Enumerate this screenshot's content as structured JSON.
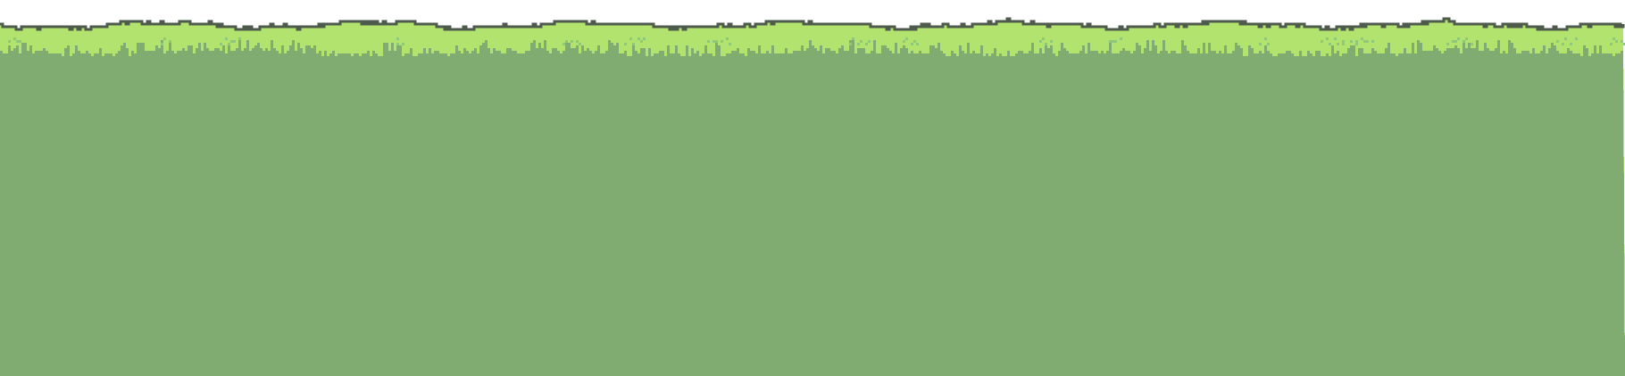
{
  "scene": {
    "type": "pixel-art-grass-ground-tile",
    "texts": []
  },
  "colors": {
    "sky": "#ffffff",
    "outline": "#4e5b4c",
    "grass_light": "#b2e36e",
    "grass_speckle": "#8fc879",
    "soil": "#80ac72"
  },
  "icons": {
    "terrain": "grass-ground-icon"
  }
}
